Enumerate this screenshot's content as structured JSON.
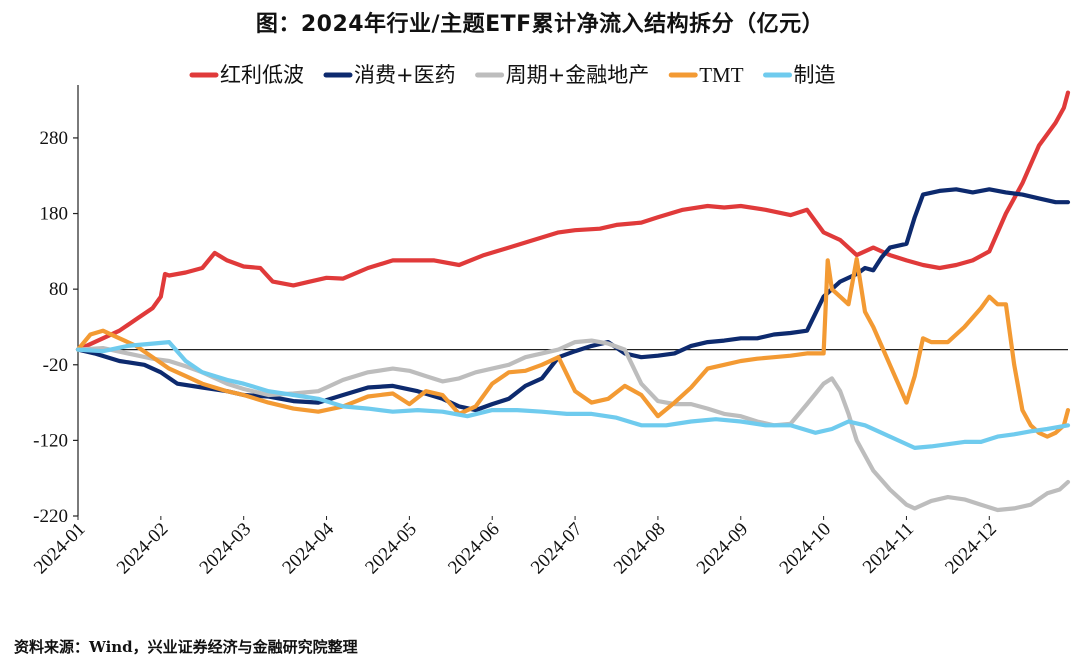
{
  "title": "图：2024年行业/主题ETF累计净流入结构拆分（亿元）",
  "source": "资料来源：Wind，兴业证券经济与金融研究院整理",
  "chart_data": {
    "type": "line",
    "ylim": [
      -220,
      350
    ],
    "yticks": [
      280,
      180,
      80,
      -20,
      -120,
      -220
    ],
    "x_categories": [
      "2024-01",
      "2024-02",
      "2024-03",
      "2024-04",
      "2024-05",
      "2024-06",
      "2024-07",
      "2024-08",
      "2024-09",
      "2024-10",
      "2024-11",
      "2024-12"
    ],
    "x_range": [
      0,
      11.95
    ],
    "baseline": 0,
    "grid": false,
    "legend_position": "top",
    "series": [
      {
        "name": "红利低波",
        "color": "#E03A3A",
        "points": [
          [
            0,
            0
          ],
          [
            0.1,
            5
          ],
          [
            0.3,
            15
          ],
          [
            0.5,
            25
          ],
          [
            0.7,
            40
          ],
          [
            0.9,
            55
          ],
          [
            1.0,
            70
          ],
          [
            1.05,
            100
          ],
          [
            1.1,
            98
          ],
          [
            1.3,
            102
          ],
          [
            1.5,
            108
          ],
          [
            1.65,
            128
          ],
          [
            1.8,
            118
          ],
          [
            2.0,
            110
          ],
          [
            2.2,
            108
          ],
          [
            2.35,
            90
          ],
          [
            2.6,
            85
          ],
          [
            2.8,
            90
          ],
          [
            3.0,
            95
          ],
          [
            3.2,
            94
          ],
          [
            3.5,
            108
          ],
          [
            3.8,
            118
          ],
          [
            4.0,
            118
          ],
          [
            4.3,
            118
          ],
          [
            4.6,
            112
          ],
          [
            4.9,
            125
          ],
          [
            5.2,
            135
          ],
          [
            5.5,
            145
          ],
          [
            5.8,
            155
          ],
          [
            6.0,
            158
          ],
          [
            6.3,
            160
          ],
          [
            6.5,
            165
          ],
          [
            6.8,
            168
          ],
          [
            7.0,
            175
          ],
          [
            7.3,
            185
          ],
          [
            7.6,
            190
          ],
          [
            7.8,
            188
          ],
          [
            8.0,
            190
          ],
          [
            8.3,
            185
          ],
          [
            8.6,
            178
          ],
          [
            8.8,
            185
          ],
          [
            9.0,
            155
          ],
          [
            9.2,
            145
          ],
          [
            9.4,
            125
          ],
          [
            9.6,
            135
          ],
          [
            9.8,
            125
          ],
          [
            10.0,
            118
          ],
          [
            10.2,
            112
          ],
          [
            10.4,
            108
          ],
          [
            10.6,
            112
          ],
          [
            10.8,
            118
          ],
          [
            11.0,
            130
          ],
          [
            11.2,
            180
          ],
          [
            11.4,
            220
          ],
          [
            11.6,
            270
          ],
          [
            11.8,
            300
          ],
          [
            11.9,
            320
          ],
          [
            11.95,
            340
          ]
        ]
      },
      {
        "name": "消费+医药",
        "color": "#0D2A6E",
        "points": [
          [
            0,
            0
          ],
          [
            0.2,
            -5
          ],
          [
            0.5,
            -15
          ],
          [
            0.8,
            -20
          ],
          [
            1.0,
            -30
          ],
          [
            1.2,
            -45
          ],
          [
            1.5,
            -50
          ],
          [
            1.8,
            -55
          ],
          [
            2.0,
            -60
          ],
          [
            2.3,
            -62
          ],
          [
            2.6,
            -68
          ],
          [
            2.9,
            -70
          ],
          [
            3.2,
            -60
          ],
          [
            3.5,
            -50
          ],
          [
            3.8,
            -48
          ],
          [
            4.1,
            -55
          ],
          [
            4.4,
            -65
          ],
          [
            4.6,
            -75
          ],
          [
            4.8,
            -80
          ],
          [
            5.0,
            -72
          ],
          [
            5.2,
            -65
          ],
          [
            5.4,
            -48
          ],
          [
            5.6,
            -38
          ],
          [
            5.8,
            -10
          ],
          [
            6.0,
            -2
          ],
          [
            6.2,
            5
          ],
          [
            6.4,
            10
          ],
          [
            6.6,
            -5
          ],
          [
            6.8,
            -10
          ],
          [
            7.0,
            -8
          ],
          [
            7.2,
            -5
          ],
          [
            7.4,
            5
          ],
          [
            7.6,
            10
          ],
          [
            7.8,
            12
          ],
          [
            8.0,
            15
          ],
          [
            8.2,
            15
          ],
          [
            8.4,
            20
          ],
          [
            8.6,
            22
          ],
          [
            8.8,
            25
          ],
          [
            9.0,
            70
          ],
          [
            9.2,
            90
          ],
          [
            9.4,
            100
          ],
          [
            9.5,
            108
          ],
          [
            9.6,
            105
          ],
          [
            9.7,
            122
          ],
          [
            9.8,
            135
          ],
          [
            10.0,
            140
          ],
          [
            10.1,
            175
          ],
          [
            10.2,
            205
          ],
          [
            10.4,
            210
          ],
          [
            10.6,
            212
          ],
          [
            10.8,
            208
          ],
          [
            11.0,
            212
          ],
          [
            11.2,
            208
          ],
          [
            11.4,
            205
          ],
          [
            11.6,
            200
          ],
          [
            11.8,
            195
          ],
          [
            11.95,
            195
          ]
        ]
      },
      {
        "name": "周期+金融地产",
        "color": "#BDBDBD",
        "points": [
          [
            0,
            0
          ],
          [
            0.3,
            2
          ],
          [
            0.6,
            -5
          ],
          [
            0.9,
            -12
          ],
          [
            1.1,
            -15
          ],
          [
            1.3,
            -22
          ],
          [
            1.5,
            -30
          ],
          [
            1.8,
            -45
          ],
          [
            2.0,
            -52
          ],
          [
            2.3,
            -60
          ],
          [
            2.6,
            -58
          ],
          [
            2.9,
            -55
          ],
          [
            3.0,
            -50
          ],
          [
            3.2,
            -40
          ],
          [
            3.5,
            -30
          ],
          [
            3.8,
            -25
          ],
          [
            4.0,
            -28
          ],
          [
            4.2,
            -35
          ],
          [
            4.4,
            -42
          ],
          [
            4.6,
            -38
          ],
          [
            4.8,
            -30
          ],
          [
            5.0,
            -25
          ],
          [
            5.2,
            -20
          ],
          [
            5.4,
            -10
          ],
          [
            5.6,
            -5
          ],
          [
            5.8,
            0
          ],
          [
            6.0,
            10
          ],
          [
            6.2,
            12
          ],
          [
            6.4,
            8
          ],
          [
            6.6,
            0
          ],
          [
            6.8,
            -45
          ],
          [
            7.0,
            -68
          ],
          [
            7.2,
            -72
          ],
          [
            7.4,
            -72
          ],
          [
            7.6,
            -78
          ],
          [
            7.8,
            -85
          ],
          [
            8.0,
            -88
          ],
          [
            8.2,
            -95
          ],
          [
            8.4,
            -100
          ],
          [
            8.6,
            -98
          ],
          [
            8.8,
            -72
          ],
          [
            9.0,
            -45
          ],
          [
            9.1,
            -38
          ],
          [
            9.2,
            -55
          ],
          [
            9.3,
            -85
          ],
          [
            9.4,
            -120
          ],
          [
            9.5,
            -140
          ],
          [
            9.6,
            -160
          ],
          [
            9.8,
            -185
          ],
          [
            10.0,
            -205
          ],
          [
            10.1,
            -210
          ],
          [
            10.3,
            -200
          ],
          [
            10.5,
            -195
          ],
          [
            10.7,
            -198
          ],
          [
            10.9,
            -205
          ],
          [
            11.1,
            -212
          ],
          [
            11.3,
            -210
          ],
          [
            11.5,
            -205
          ],
          [
            11.7,
            -190
          ],
          [
            11.85,
            -185
          ],
          [
            11.95,
            -175
          ]
        ]
      },
      {
        "name": "TMT",
        "color": "#F39A33",
        "points": [
          [
            0,
            0
          ],
          [
            0.15,
            20
          ],
          [
            0.3,
            25
          ],
          [
            0.5,
            15
          ],
          [
            0.7,
            5
          ],
          [
            0.9,
            -10
          ],
          [
            1.1,
            -25
          ],
          [
            1.3,
            -35
          ],
          [
            1.5,
            -45
          ],
          [
            1.8,
            -55
          ],
          [
            2.0,
            -60
          ],
          [
            2.3,
            -70
          ],
          [
            2.6,
            -78
          ],
          [
            2.9,
            -82
          ],
          [
            3.2,
            -75
          ],
          [
            3.5,
            -62
          ],
          [
            3.8,
            -58
          ],
          [
            4.0,
            -72
          ],
          [
            4.2,
            -55
          ],
          [
            4.4,
            -60
          ],
          [
            4.6,
            -85
          ],
          [
            4.8,
            -75
          ],
          [
            5.0,
            -45
          ],
          [
            5.2,
            -30
          ],
          [
            5.4,
            -28
          ],
          [
            5.6,
            -20
          ],
          [
            5.8,
            -10
          ],
          [
            6.0,
            -55
          ],
          [
            6.2,
            -70
          ],
          [
            6.4,
            -65
          ],
          [
            6.6,
            -48
          ],
          [
            6.8,
            -60
          ],
          [
            7.0,
            -88
          ],
          [
            7.2,
            -70
          ],
          [
            7.4,
            -50
          ],
          [
            7.6,
            -25
          ],
          [
            7.8,
            -20
          ],
          [
            8.0,
            -15
          ],
          [
            8.2,
            -12
          ],
          [
            8.4,
            -10
          ],
          [
            8.6,
            -8
          ],
          [
            8.8,
            -5
          ],
          [
            9.0,
            -5
          ],
          [
            9.05,
            118
          ],
          [
            9.1,
            80
          ],
          [
            9.2,
            70
          ],
          [
            9.3,
            60
          ],
          [
            9.4,
            120
          ],
          [
            9.5,
            50
          ],
          [
            9.6,
            30
          ],
          [
            9.7,
            5
          ],
          [
            9.8,
            -20
          ],
          [
            9.9,
            -45
          ],
          [
            10.0,
            -70
          ],
          [
            10.1,
            -35
          ],
          [
            10.2,
            15
          ],
          [
            10.3,
            10
          ],
          [
            10.5,
            10
          ],
          [
            10.7,
            30
          ],
          [
            10.9,
            55
          ],
          [
            11.0,
            70
          ],
          [
            11.1,
            60
          ],
          [
            11.2,
            60
          ],
          [
            11.3,
            -20
          ],
          [
            11.4,
            -80
          ],
          [
            11.5,
            -100
          ],
          [
            11.6,
            -110
          ],
          [
            11.7,
            -115
          ],
          [
            11.8,
            -110
          ],
          [
            11.9,
            -100
          ],
          [
            11.95,
            -80
          ]
        ]
      },
      {
        "name": "制造",
        "color": "#6FCBEE",
        "points": [
          [
            0,
            0
          ],
          [
            0.3,
            -2
          ],
          [
            0.6,
            5
          ],
          [
            0.9,
            8
          ],
          [
            1.1,
            10
          ],
          [
            1.3,
            -15
          ],
          [
            1.5,
            -30
          ],
          [
            1.8,
            -40
          ],
          [
            2.0,
            -45
          ],
          [
            2.3,
            -55
          ],
          [
            2.6,
            -60
          ],
          [
            2.9,
            -65
          ],
          [
            3.2,
            -75
          ],
          [
            3.5,
            -78
          ],
          [
            3.8,
            -82
          ],
          [
            4.1,
            -80
          ],
          [
            4.4,
            -82
          ],
          [
            4.7,
            -88
          ],
          [
            5.0,
            -80
          ],
          [
            5.3,
            -80
          ],
          [
            5.6,
            -82
          ],
          [
            5.9,
            -85
          ],
          [
            6.2,
            -85
          ],
          [
            6.5,
            -90
          ],
          [
            6.8,
            -100
          ],
          [
            7.1,
            -100
          ],
          [
            7.4,
            -95
          ],
          [
            7.7,
            -92
          ],
          [
            8.0,
            -95
          ],
          [
            8.3,
            -100
          ],
          [
            8.6,
            -100
          ],
          [
            8.9,
            -110
          ],
          [
            9.1,
            -105
          ],
          [
            9.3,
            -95
          ],
          [
            9.5,
            -100
          ],
          [
            9.7,
            -110
          ],
          [
            9.9,
            -120
          ],
          [
            10.1,
            -130
          ],
          [
            10.3,
            -128
          ],
          [
            10.5,
            -125
          ],
          [
            10.7,
            -122
          ],
          [
            10.9,
            -122
          ],
          [
            11.1,
            -115
          ],
          [
            11.3,
            -112
          ],
          [
            11.5,
            -108
          ],
          [
            11.7,
            -105
          ],
          [
            11.95,
            -100
          ]
        ]
      }
    ]
  }
}
